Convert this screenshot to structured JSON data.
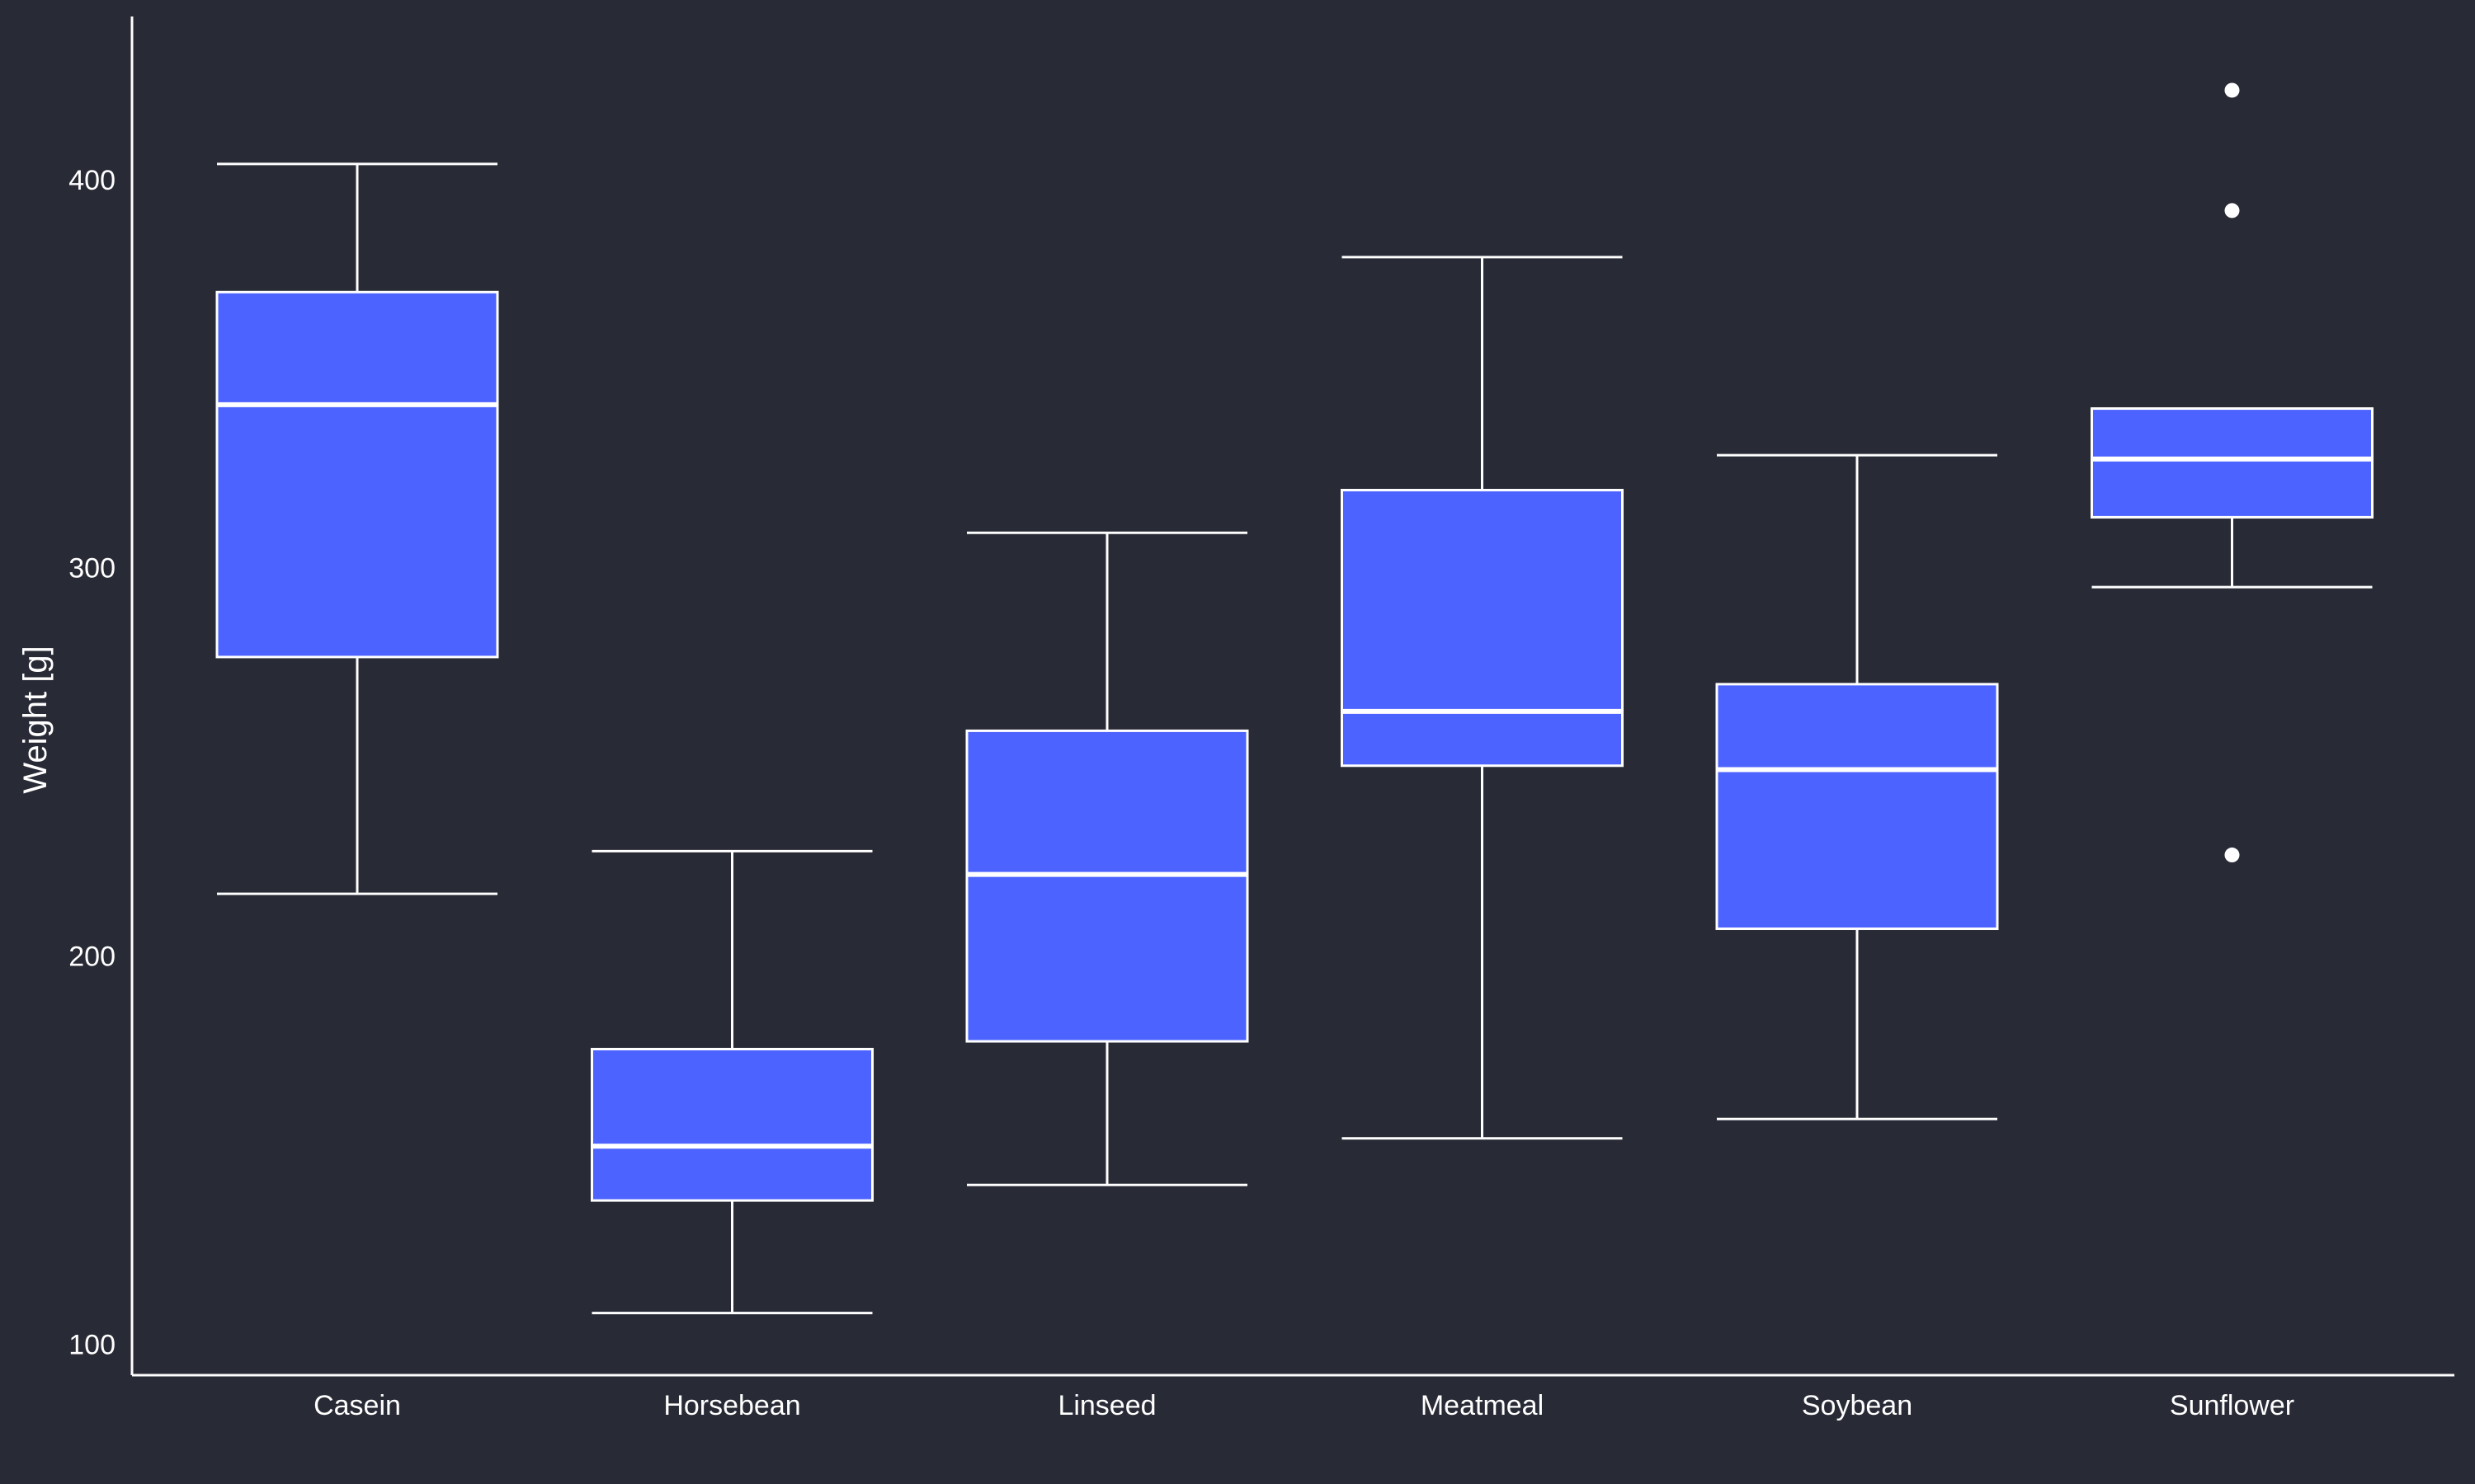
{
  "chart_data": {
    "type": "box",
    "ylabel": "Weight [g]",
    "xlabel": "",
    "ylim": [
      92,
      442
    ],
    "yticks": [
      100,
      200,
      300,
      400
    ],
    "categories": [
      "Casein",
      "Horsebean",
      "Linseed",
      "Meatmeal",
      "Soybean",
      "Sunflower"
    ],
    "boxes": [
      {
        "category": "Casein",
        "whisker_low": 216,
        "q1": 277,
        "median": 342,
        "q3": 371,
        "whisker_high": 404,
        "outliers": []
      },
      {
        "category": "Horsebean",
        "whisker_low": 108,
        "q1": 137,
        "median": 151,
        "q3": 176,
        "whisker_high": 227,
        "outliers": []
      },
      {
        "category": "Linseed",
        "whisker_low": 141,
        "q1": 178,
        "median": 221,
        "q3": 258,
        "whisker_high": 309,
        "outliers": []
      },
      {
        "category": "Meatmeal",
        "whisker_low": 153,
        "q1": 249,
        "median": 263,
        "q3": 320,
        "whisker_high": 380,
        "outliers": []
      },
      {
        "category": "Soybean",
        "whisker_low": 158,
        "q1": 207,
        "median": 248,
        "q3": 270,
        "whisker_high": 329,
        "outliers": []
      },
      {
        "category": "Sunflower",
        "whisker_low": 295,
        "q1": 313,
        "median": 328,
        "q3": 341,
        "whisker_high": 341,
        "outliers": [
          226,
          392,
          423
        ]
      }
    ],
    "colors": {
      "background": "#282a36",
      "box_fill": "#4c63ff",
      "stroke": "#ffffff"
    },
    "grid": false,
    "legend": "none"
  }
}
